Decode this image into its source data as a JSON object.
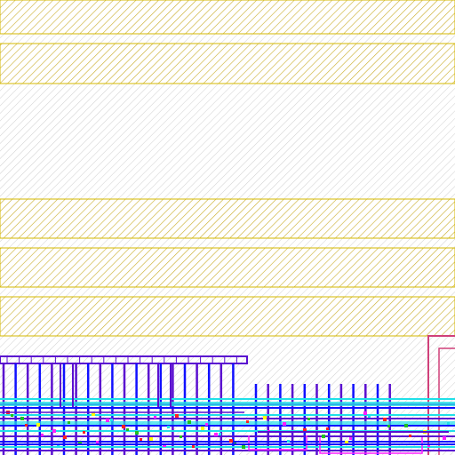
{
  "view": {
    "type": "ic-layout-viewer",
    "background": "#ffffff"
  },
  "layers": {
    "rail_hatch": {
      "color": "#d4b800",
      "pattern": "diagonal-hatch"
    },
    "field_hatch": {
      "color": "#c8c8c8",
      "pattern": "diagonal-hatch"
    },
    "metal_purple": {
      "color": "#5a0fd0"
    },
    "metal_blue": {
      "color": "#1010ff"
    },
    "diffusion_cyan": {
      "color": "#20e0e8"
    },
    "poly_magenta": {
      "color": "#ff20ff"
    },
    "contact_red": {
      "color": "#ff2020"
    },
    "active_green": {
      "color": "#20c020"
    },
    "highlight_yellow": {
      "color": "#ffff00"
    },
    "boundary_pink": {
      "color": "#e040a0"
    }
  }
}
